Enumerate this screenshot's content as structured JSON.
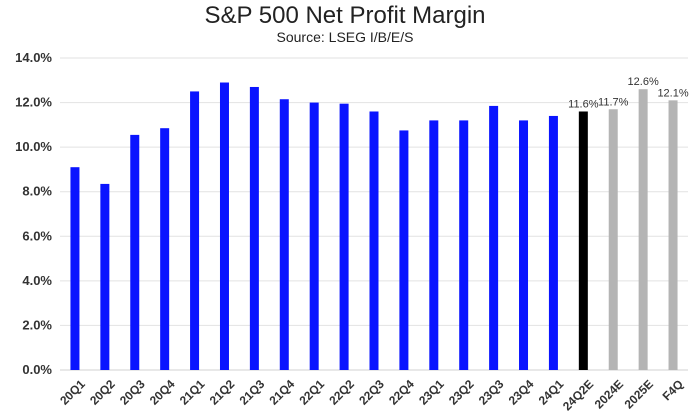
{
  "chart_data": {
    "type": "bar",
    "title": "S&P 500 Net Profit Margin",
    "subtitle": "Source: LSEG I/B/E/S",
    "categories": [
      "20Q1",
      "20Q2",
      "20Q3",
      "20Q4",
      "21Q1",
      "21Q2",
      "21Q3",
      "21Q4",
      "22Q1",
      "22Q2",
      "22Q3",
      "22Q4",
      "23Q1",
      "23Q2",
      "23Q3",
      "23Q4",
      "24Q1",
      "24Q2E",
      "2024E",
      "2025E",
      "F4Q"
    ],
    "values": [
      9.1,
      8.35,
      10.55,
      10.85,
      12.5,
      12.9,
      12.7,
      12.15,
      12.0,
      11.95,
      11.6,
      10.75,
      11.2,
      11.2,
      11.85,
      11.2,
      11.4,
      11.6,
      11.7,
      12.6,
      12.1
    ],
    "bar_colors": [
      "#0a14ff",
      "#0a14ff",
      "#0a14ff",
      "#0a14ff",
      "#0a14ff",
      "#0a14ff",
      "#0a14ff",
      "#0a14ff",
      "#0a14ff",
      "#0a14ff",
      "#0a14ff",
      "#0a14ff",
      "#0a14ff",
      "#0a14ff",
      "#0a14ff",
      "#0a14ff",
      "#0a14ff",
      "#000000",
      "#b4b4b4",
      "#b4b4b4",
      "#b4b4b4"
    ],
    "data_labels": [
      "",
      "",
      "",
      "",
      "",
      "",
      "",
      "",
      "",
      "",
      "",
      "",
      "",
      "",
      "",
      "",
      "",
      "11.6%",
      "11.7%",
      "12.6%",
      "12.1%"
    ],
    "y_ticks": [
      "0.0%",
      "2.0%",
      "4.0%",
      "6.0%",
      "8.0%",
      "10.0%",
      "12.0%",
      "14.0%"
    ],
    "ylim": [
      0,
      14
    ],
    "xlabel": "",
    "ylabel": "",
    "grid": "horizontal",
    "legend": "none"
  }
}
